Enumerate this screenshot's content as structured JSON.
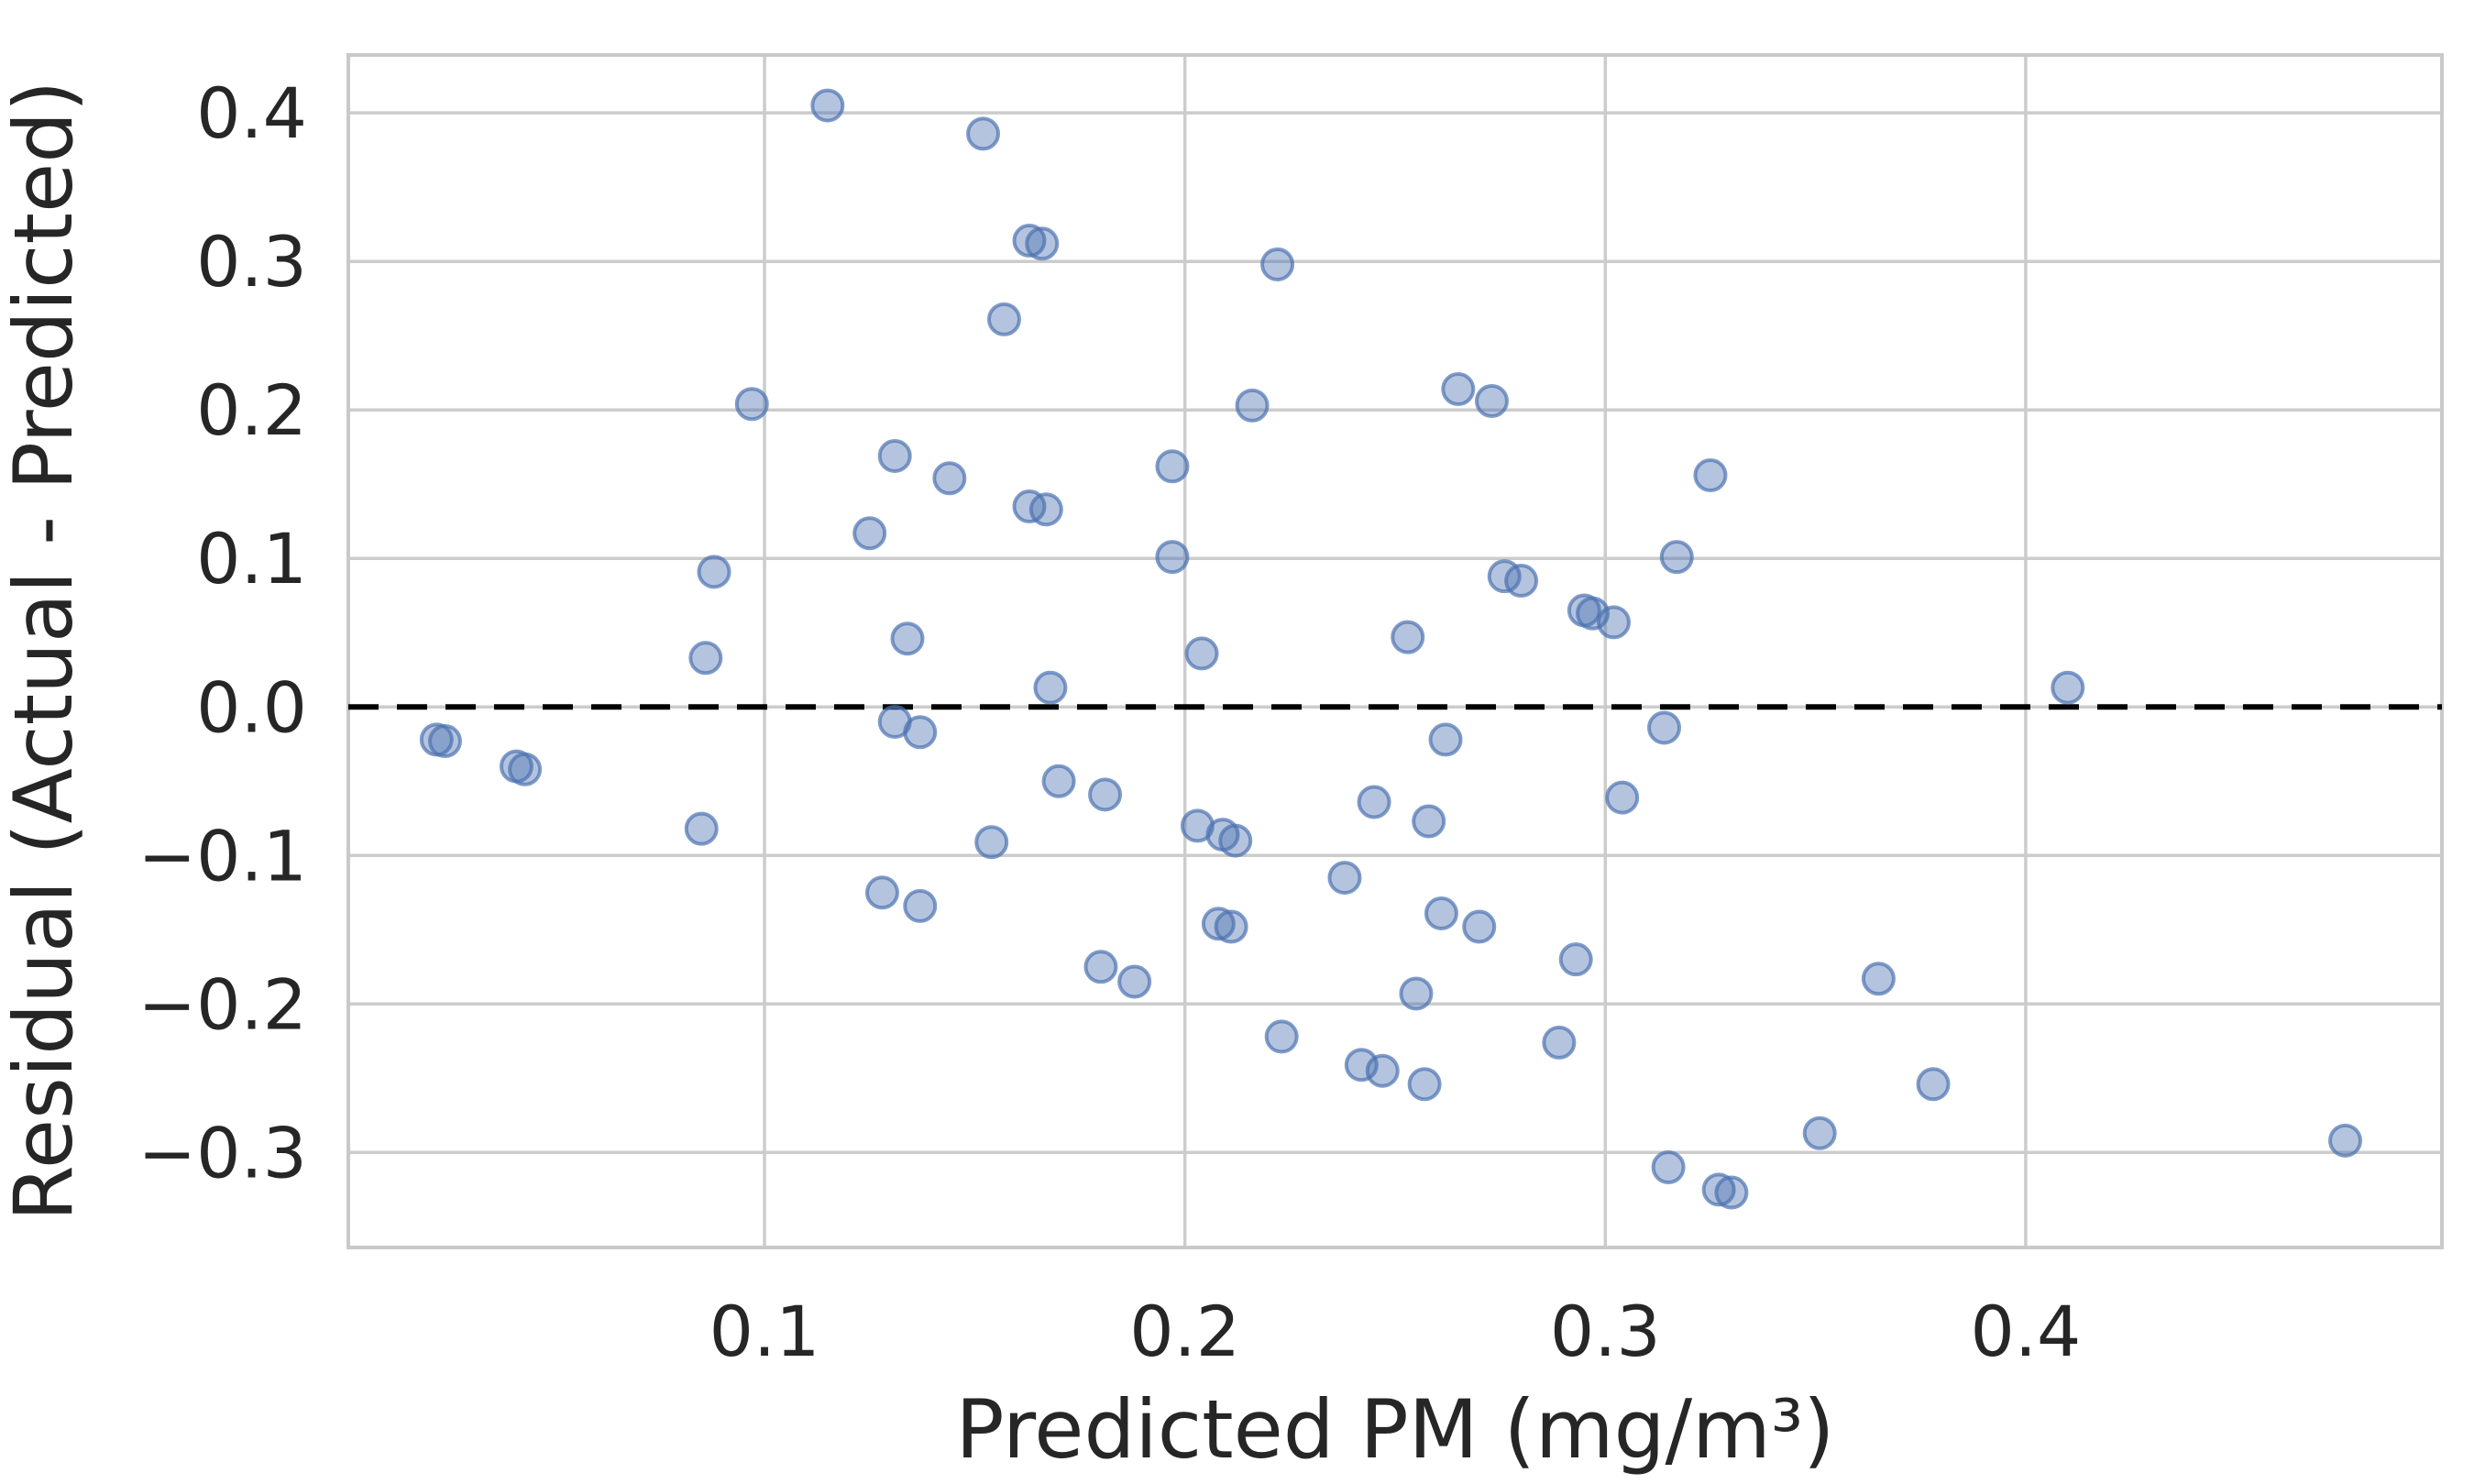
{
  "figure": {
    "background": "#ffffff",
    "text_color": "#262626"
  },
  "chart_data": {
    "type": "scatter",
    "title": "",
    "xlabel": "Predicted PM (mg/m³)",
    "ylabel": "Residual (Actual - Predicted)",
    "xlim": [
      0.001,
      0.499
    ],
    "ylim": [
      -0.364,
      0.439
    ],
    "grid": true,
    "legend": "none",
    "grid_color": "#cccccc",
    "spine_color": "#c9c9c9",
    "x_ticks": [
      {
        "value": 0.1,
        "label": "0.1"
      },
      {
        "value": 0.2,
        "label": "0.2"
      },
      {
        "value": 0.3,
        "label": "0.3"
      },
      {
        "value": 0.4,
        "label": "0.4"
      }
    ],
    "y_ticks": [
      {
        "value": 0.4,
        "label": "0.4"
      },
      {
        "value": 0.3,
        "label": "0.3"
      },
      {
        "value": 0.2,
        "label": "0.2"
      },
      {
        "value": 0.1,
        "label": "0.1"
      },
      {
        "value": 0.0,
        "label": "0.0"
      },
      {
        "value": -0.1,
        "label": "−0.1"
      },
      {
        "value": -0.2,
        "label": "−0.2"
      },
      {
        "value": -0.3,
        "label": "−0.3"
      }
    ],
    "zero_line": {
      "y": 0.0,
      "style": "dashed",
      "color": "#000000"
    },
    "marker": {
      "shape": "circle",
      "color": "#4C72B0",
      "fill_opacity": 0.42,
      "stroke_opacity": 0.7,
      "radius_px": 16.5,
      "stroke_width_px": 4
    },
    "points": [
      [
        0.115,
        0.405
      ],
      [
        0.152,
        0.386
      ],
      [
        0.163,
        0.314
      ],
      [
        0.166,
        0.312
      ],
      [
        0.157,
        0.261
      ],
      [
        0.097,
        0.204
      ],
      [
        0.131,
        0.169
      ],
      [
        0.144,
        0.154
      ],
      [
        0.163,
        0.135
      ],
      [
        0.167,
        0.133
      ],
      [
        0.125,
        0.117
      ],
      [
        0.088,
        0.091
      ],
      [
        0.134,
        0.046
      ],
      [
        0.086,
        0.033
      ],
      [
        0.222,
        0.298
      ],
      [
        0.216,
        0.203
      ],
      [
        0.265,
        0.214
      ],
      [
        0.273,
        0.206
      ],
      [
        0.197,
        0.162
      ],
      [
        0.325,
        0.156
      ],
      [
        0.317,
        0.101
      ],
      [
        0.197,
        0.101
      ],
      [
        0.276,
        0.088
      ],
      [
        0.28,
        0.085
      ],
      [
        0.295,
        0.065
      ],
      [
        0.297,
        0.063
      ],
      [
        0.302,
        0.057
      ],
      [
        0.253,
        0.047
      ],
      [
        0.204,
        0.036
      ],
      [
        0.022,
        -0.022
      ],
      [
        0.024,
        -0.023
      ],
      [
        0.041,
        -0.04
      ],
      [
        0.043,
        -0.042
      ],
      [
        0.085,
        -0.082
      ],
      [
        0.131,
        -0.01
      ],
      [
        0.137,
        -0.017
      ],
      [
        0.168,
        0.013
      ],
      [
        0.17,
        -0.05
      ],
      [
        0.154,
        -0.091
      ],
      [
        0.128,
        -0.125
      ],
      [
        0.137,
        -0.134
      ],
      [
        0.181,
        -0.059
      ],
      [
        0.203,
        -0.08
      ],
      [
        0.209,
        -0.086
      ],
      [
        0.212,
        -0.09
      ],
      [
        0.262,
        -0.022
      ],
      [
        0.245,
        -0.064
      ],
      [
        0.258,
        -0.077
      ],
      [
        0.304,
        -0.061
      ],
      [
        0.314,
        -0.014
      ],
      [
        0.238,
        -0.115
      ],
      [
        0.208,
        -0.146
      ],
      [
        0.211,
        -0.148
      ],
      [
        0.261,
        -0.139
      ],
      [
        0.27,
        -0.148
      ],
      [
        0.293,
        -0.17
      ],
      [
        0.18,
        -0.175
      ],
      [
        0.188,
        -0.185
      ],
      [
        0.255,
        -0.193
      ],
      [
        0.223,
        -0.222
      ],
      [
        0.242,
        -0.241
      ],
      [
        0.247,
        -0.245
      ],
      [
        0.257,
        -0.254
      ],
      [
        0.289,
        -0.226
      ],
      [
        0.315,
        -0.31
      ],
      [
        0.327,
        -0.325
      ],
      [
        0.33,
        -0.327
      ],
      [
        0.41,
        0.013
      ],
      [
        0.365,
        -0.183
      ],
      [
        0.378,
        -0.254
      ],
      [
        0.351,
        -0.287
      ],
      [
        0.476,
        -0.292
      ]
    ]
  }
}
